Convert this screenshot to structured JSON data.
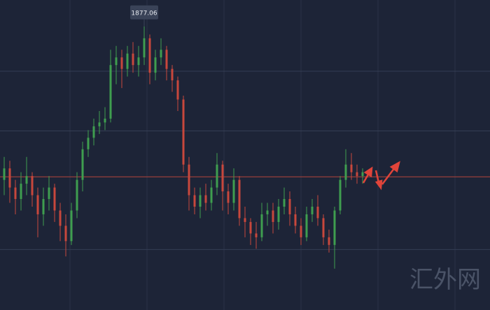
{
  "chart_data": {
    "type": "candlestick",
    "ylim": [
      1840,
      1880.5
    ],
    "grid_y": [
      1871.2,
      1863.4,
      1847.9
    ],
    "hline": 1857.4,
    "up_color": "#3f9e4f",
    "down_color": "#c8473c",
    "hline_color": "#b5453c",
    "watermark": "汇外网",
    "open": [
      1857,
      1858.5,
      1856,
      1854.5,
      1856.5,
      1857.5,
      1855,
      1852.5,
      1854.5,
      1856,
      1853,
      1851,
      1849,
      1853,
      1857,
      1861,
      1862.5,
      1864,
      1864.5,
      1865,
      1872,
      1873,
      1871.5,
      1873.5,
      1872,
      1873,
      1875.5,
      1871,
      1873,
      1874,
      1871.5,
      1870,
      1867.5,
      1859,
      1855,
      1853.5,
      1855,
      1854,
      1856,
      1859,
      1855.5,
      1854,
      1857,
      1852,
      1851.5,
      1850,
      1849.5,
      1852.5,
      1853,
      1851.5,
      1853.5,
      1854.5,
      1852.5,
      1851,
      1849.5,
      1852.5,
      1853.5,
      1852,
      1849.5,
      1848.5,
      1853,
      1857,
      1859,
      1858,
      1857.5
    ],
    "high": [
      1860,
      1859.5,
      1857,
      1858,
      1860,
      1858,
      1856,
      1856,
      1857.5,
      1856.5,
      1854,
      1852.5,
      1854,
      1858,
      1862,
      1863.5,
      1865,
      1866,
      1866.5,
      1874,
      1874.5,
      1874,
      1874.5,
      1875,
      1874.5,
      1877.06,
      1876,
      1874,
      1875.5,
      1874.5,
      1872,
      1870.5,
      1868,
      1860,
      1856,
      1856,
      1856.5,
      1857,
      1860.5,
      1859.5,
      1856.5,
      1858.5,
      1857.5,
      1853.5,
      1852,
      1851.5,
      1854,
      1854,
      1854,
      1854.5,
      1856,
      1855.5,
      1853.5,
      1852,
      1853.5,
      1854.5,
      1855,
      1852.5,
      1850.5,
      1853.5,
      1857.5,
      1861,
      1860.5,
      1859,
      1858.5
    ],
    "low": [
      1855,
      1854,
      1852.5,
      1853,
      1855,
      1853.5,
      1849.5,
      1851,
      1853,
      1851.5,
      1849,
      1847,
      1848.5,
      1852,
      1855.5,
      1860,
      1861.5,
      1863,
      1863.5,
      1864.5,
      1869.5,
      1869,
      1870.5,
      1871,
      1870.5,
      1872,
      1869.5,
      1870,
      1872,
      1870,
      1868.5,
      1866,
      1858,
      1853,
      1852.5,
      1852,
      1853,
      1853,
      1855,
      1853,
      1852.5,
      1853,
      1851,
      1849.5,
      1848.5,
      1848,
      1849,
      1851,
      1850,
      1850.5,
      1852.5,
      1851,
      1850,
      1848.5,
      1849,
      1851.5,
      1851,
      1848.5,
      1847.5,
      1845.4,
      1852.5,
      1856,
      1857,
      1856.5,
      1856.5
    ],
    "close": [
      1858.5,
      1856,
      1854.5,
      1856.5,
      1857.5,
      1855,
      1852.5,
      1854.5,
      1856,
      1853,
      1851,
      1849,
      1853,
      1857,
      1861,
      1862.5,
      1864,
      1864.5,
      1865,
      1872,
      1873,
      1871.5,
      1873.5,
      1872,
      1873,
      1875.5,
      1871,
      1873,
      1874,
      1871.5,
      1870,
      1867.5,
      1859,
      1855,
      1853.5,
      1855,
      1854,
      1856,
      1859,
      1855.5,
      1854,
      1857,
      1852,
      1851.5,
      1850,
      1849.5,
      1852.5,
      1853,
      1851.5,
      1853.5,
      1854.5,
      1852.5,
      1851,
      1849.5,
      1852.5,
      1853.5,
      1852,
      1849.5,
      1848.5,
      1853,
      1857,
      1859,
      1858,
      1857.5,
      1858
    ]
  }
}
